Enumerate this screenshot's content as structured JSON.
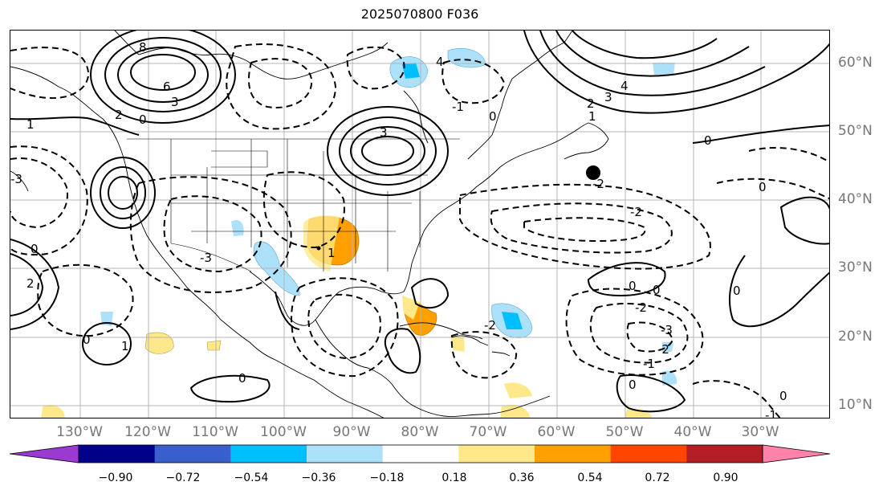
{
  "title": "2025070800 F036",
  "longitude_labels": [
    "130°W",
    "120°W",
    "110°W",
    "100°W",
    "90°W",
    "80°W",
    "70°W",
    "60°W",
    "50°W",
    "40°W",
    "30°W"
  ],
  "latitude_labels": [
    "60°N",
    "50°N",
    "40°N",
    "30°N",
    "20°N",
    "10°N"
  ],
  "colorbar": {
    "tick_labels": [
      "−0.90",
      "−0.72",
      "−0.54",
      "−0.36",
      "−0.18",
      "0.18",
      "0.36",
      "0.54",
      "0.72",
      "0.90"
    ],
    "colors": [
      "#9a3ad1",
      "#00008b",
      "#3a5fcd",
      "#00bfff",
      "#ade0f9",
      "#ffffff",
      "#ffe88a",
      "#ffa000",
      "#ff4500",
      "#b21e23",
      "#ff82ab"
    ]
  },
  "contour_labels": [
    "8",
    "6",
    "3",
    "2",
    "1",
    "0",
    "-1",
    "-2",
    "-3",
    "4"
  ],
  "marker": "filled-black-circle"
}
